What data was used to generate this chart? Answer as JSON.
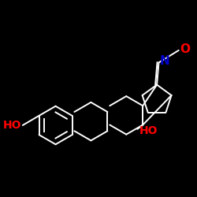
{
  "background_color": "#000000",
  "bond_color": "#ffffff",
  "atom_colors": {
    "O": "#ff0000",
    "N": "#0000cd",
    "HO_left": "#ff0000",
    "HO_right": "#ff0000"
  },
  "figsize": [
    2.5,
    2.5
  ],
  "dpi": 100,
  "lw": 1.4,
  "fs": 10
}
